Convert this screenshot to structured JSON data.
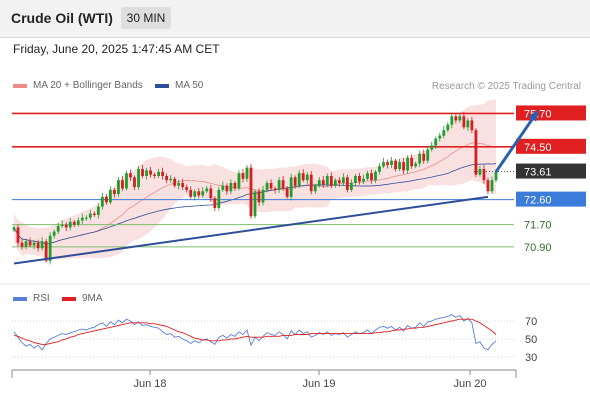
{
  "header": {
    "title": "Crude Oil (WTI)",
    "timeframe": "30 MIN"
  },
  "datetime": "Friday, June 20, 2025 1:47:45 AM CET",
  "legend": {
    "ma20_bb": "MA 20 + Bollinger Bands",
    "ma50": "MA 50"
  },
  "copyright": "Research © 2025 Trading Central",
  "rsi_legend": {
    "rsi": "RSI",
    "ma9": "9MA"
  },
  "colors": {
    "resistance": "#e02020",
    "pivot": "#3b7bd9",
    "support": "#7cbf6a",
    "current": "#333333",
    "candle_up": "#1e9e2e",
    "candle_down": "#d21f1f",
    "bollinger_fill": "#f8d4d4",
    "ma20": "#e88e8e",
    "ma50": "#2f4e9a",
    "arrow": "#2b5fb0",
    "rsi": "#5a7fd6",
    "rsi_ma9": "#e02020"
  },
  "chart_data": [
    {
      "type": "candlestick",
      "title": "Crude Oil (WTI)",
      "timeframe": "30 MIN",
      "ylim": [
        69.6,
        76.4
      ],
      "x_labels": [
        "Jun 18",
        "Jun 19",
        "Jun 20"
      ],
      "levels": [
        {
          "label": "75.70",
          "value": 75.7,
          "kind": "resistance"
        },
        {
          "label": "74.50",
          "value": 74.5,
          "kind": "resistance"
        },
        {
          "label": "73.61",
          "value": 73.61,
          "kind": "current"
        },
        {
          "label": "72.60",
          "value": 72.6,
          "kind": "pivot"
        },
        {
          "label": "71.70",
          "value": 71.7,
          "kind": "support"
        },
        {
          "label": "70.90",
          "value": 70.9,
          "kind": "support"
        }
      ],
      "trendline": {
        "from": [
          0,
          70.3
        ],
        "to": [
          118,
          72.7
        ]
      },
      "forecast_arrow": {
        "from": [
          120,
          73.6
        ],
        "to": [
          130,
          75.7
        ]
      },
      "candles_close": [
        71.6,
        71.05,
        70.9,
        71.1,
        70.95,
        71.05,
        70.85,
        71.1,
        70.4,
        71.3,
        71.45,
        71.65,
        71.7,
        71.6,
        71.8,
        71.7,
        71.85,
        71.95,
        71.95,
        72.1,
        72.05,
        72.35,
        72.7,
        72.5,
        72.95,
        72.8,
        73.3,
        73.0,
        73.55,
        73.4,
        73.05,
        73.7,
        73.45,
        73.65,
        73.5,
        73.45,
        73.6,
        73.45,
        73.3,
        73.35,
        73.1,
        73.2,
        73.05,
        72.95,
        72.7,
        72.9,
        72.75,
        72.9,
        73.0,
        72.65,
        72.3,
        72.95,
        73.1,
        72.9,
        73.2,
        73.0,
        73.55,
        73.35,
        73.75,
        72.0,
        72.9,
        72.5,
        72.95,
        73.2,
        73.0,
        72.95,
        73.3,
        73.0,
        72.7,
        73.4,
        73.1,
        73.55,
        73.3,
        73.5,
        72.9,
        73.1,
        73.3,
        73.15,
        73.45,
        73.1,
        73.3,
        73.2,
        73.4,
        72.95,
        73.2,
        73.45,
        73.25,
        73.35,
        73.55,
        73.3,
        73.6,
        73.8,
        73.95,
        73.85,
        74.0,
        73.7,
        73.95,
        73.65,
        74.1,
        73.8,
        73.9,
        74.25,
        74.0,
        74.4,
        74.55,
        74.8,
        74.9,
        75.1,
        75.3,
        75.6,
        75.45,
        75.6,
        75.2,
        75.45,
        75.1,
        73.5,
        73.7,
        73.3,
        72.9,
        73.3,
        73.61
      ]
    },
    {
      "type": "line",
      "title": "RSI",
      "series": [
        {
          "name": "RSI"
        },
        {
          "name": "9MA"
        }
      ],
      "y_ticks": [
        70,
        50,
        30
      ],
      "ylim": [
        20,
        80
      ],
      "rsi_values": [
        58,
        52,
        46,
        42,
        44,
        40,
        43,
        38,
        45,
        50,
        52,
        54,
        56,
        55,
        57,
        58,
        60,
        61,
        60,
        62,
        63,
        66,
        68,
        64,
        69,
        66,
        71,
        68,
        72,
        70,
        66,
        69,
        65,
        66,
        64,
        63,
        62,
        58,
        55,
        56,
        52,
        53,
        50,
        48,
        45,
        48,
        46,
        49,
        50,
        47,
        44,
        52,
        54,
        51,
        55,
        53,
        58,
        55,
        60,
        43,
        52,
        48,
        53,
        57,
        55,
        54,
        58,
        55,
        50,
        59,
        55,
        60,
        56,
        58,
        52,
        54,
        57,
        55,
        58,
        54,
        56,
        55,
        57,
        52,
        55,
        58,
        56,
        57,
        60,
        56,
        60,
        63,
        64,
        62,
        64,
        60,
        63,
        59,
        65,
        62,
        63,
        68,
        64,
        69,
        70,
        72,
        73,
        74,
        75,
        77,
        74,
        76,
        70,
        73,
        68,
        45,
        47,
        40,
        38,
        44,
        48
      ],
      "ma9_values": [
        54,
        53,
        51,
        49,
        48,
        46,
        45,
        44,
        44,
        45,
        46,
        47,
        49,
        50,
        52,
        53,
        55,
        56,
        57,
        58,
        59,
        60,
        61,
        62,
        63,
        64,
        65,
        66,
        67,
        68,
        68,
        68,
        68,
        68,
        67,
        67,
        66,
        65,
        64,
        62,
        60,
        58,
        57,
        55,
        53,
        51,
        50,
        49,
        49,
        48,
        48,
        48,
        49,
        49,
        50,
        50,
        51,
        52,
        53,
        52,
        52,
        52,
        52,
        53,
        53,
        53,
        53,
        54,
        54,
        54,
        55,
        55,
        55,
        55,
        56,
        56,
        56,
        56,
        56,
        56,
        56,
        56,
        56,
        56,
        56,
        56,
        56,
        56,
        56,
        56,
        57,
        57,
        58,
        58,
        59,
        60,
        60,
        61,
        61,
        62,
        62,
        63,
        63,
        64,
        65,
        66,
        67,
        68,
        69,
        70,
        71,
        72,
        72,
        72,
        72,
        70,
        68,
        65,
        62,
        59,
        55
      ]
    }
  ]
}
